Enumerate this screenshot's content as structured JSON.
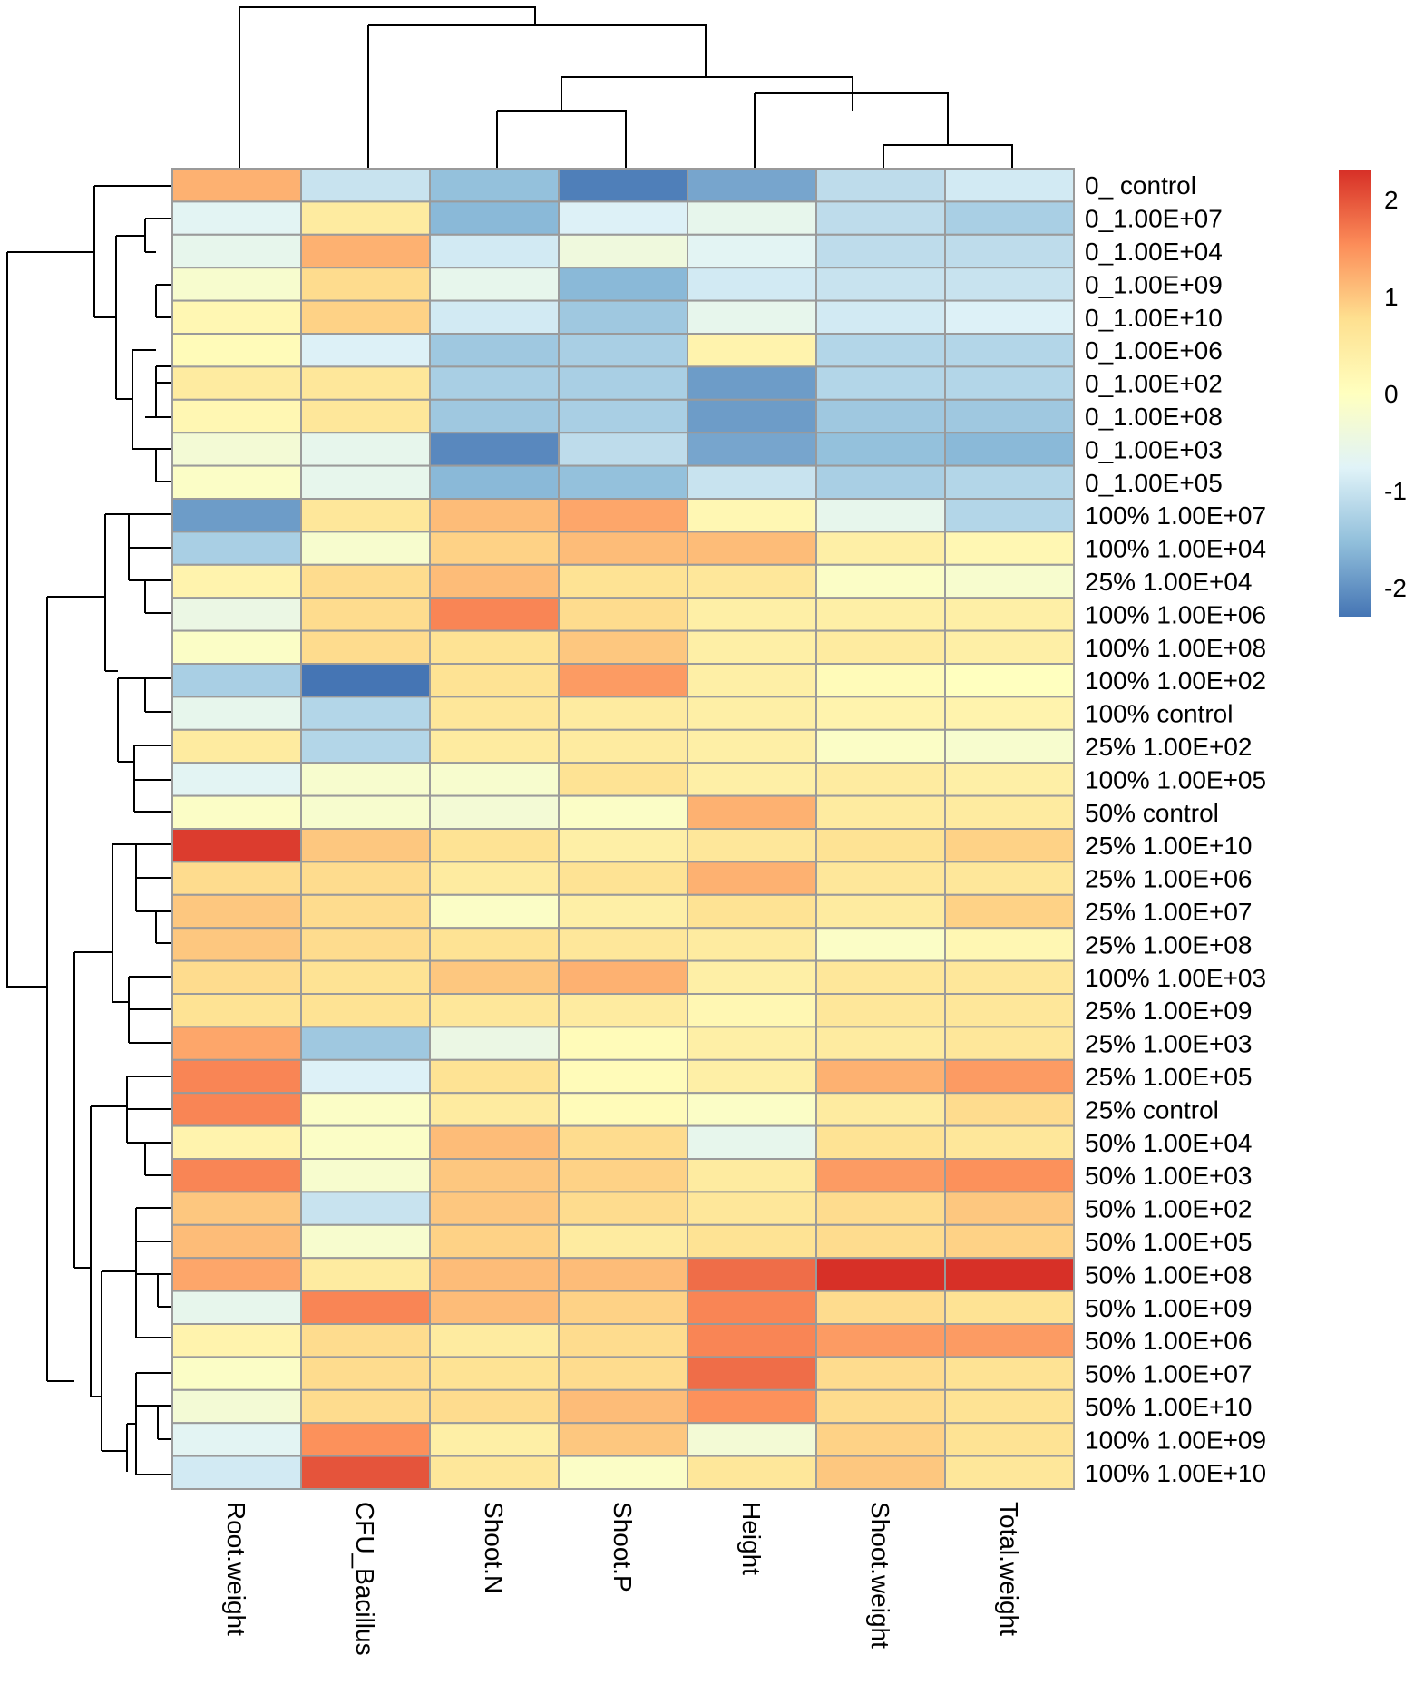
{
  "chart_data": {
    "type": "heatmap",
    "columns": [
      "Root.weight",
      "CFU_Bacillus",
      "Shoot.N",
      "Shoot.P",
      "Height",
      "Shoot.weight",
      "Total.weight"
    ],
    "rows": [
      "0_ control",
      "0_1.00E+07",
      "0_1.00E+04",
      "0_1.00E+09",
      "0_1.00E+10",
      "0_1.00E+06",
      "0_1.00E+02",
      "0_1.00E+08",
      "0_1.00E+03",
      "0_1.00E+05",
      "100% 1.00E+07",
      "100% 1.00E+04",
      "25% 1.00E+04",
      "100% 1.00E+06",
      "100% 1.00E+08",
      "100% 1.00E+02",
      "100% control",
      "25% 1.00E+02",
      "100% 1.00E+05",
      "50% control",
      "25% 1.00E+10",
      "25% 1.00E+06",
      "25% 1.00E+07",
      "25% 1.00E+08",
      "100% 1.00E+03",
      "25% 1.00E+09",
      "25% 1.00E+03",
      "25% 1.00E+05",
      "25% control",
      "50% 1.00E+04",
      "50% 1.00E+03",
      "50% 1.00E+02",
      "50% 1.00E+05",
      "50% 1.00E+08",
      "50% 1.00E+09",
      "50% 1.00E+06",
      "50% 1.00E+07",
      "50% 1.00E+10",
      "100% 1.00E+09",
      "100% 1.00E+10"
    ],
    "values": [
      [
        1.2,
        -1.0,
        -1.5,
        -2.2,
        -1.8,
        -1.1,
        -0.9
      ],
      [
        -0.7,
        0.5,
        -1.6,
        -0.8,
        -0.6,
        -1.1,
        -1.3
      ],
      [
        -0.6,
        1.2,
        -0.9,
        -0.4,
        -0.7,
        -1.1,
        -1.1
      ],
      [
        -0.2,
        0.8,
        -0.6,
        -1.6,
        -0.9,
        -1.0,
        -1.0
      ],
      [
        0.2,
        0.9,
        -0.9,
        -1.4,
        -0.6,
        -0.9,
        -0.8
      ],
      [
        0.1,
        -0.8,
        -1.4,
        -1.3,
        0.3,
        -1.2,
        -1.2
      ],
      [
        0.5,
        0.6,
        -1.3,
        -1.3,
        -1.9,
        -1.2,
        -1.2
      ],
      [
        0.2,
        0.6,
        -1.4,
        -1.3,
        -1.9,
        -1.4,
        -1.4
      ],
      [
        -0.3,
        -0.6,
        -2.1,
        -1.1,
        -1.8,
        -1.5,
        -1.6
      ],
      [
        -0.1,
        -0.6,
        -1.6,
        -1.5,
        -1.0,
        -1.3,
        -1.2
      ],
      [
        -1.9,
        0.6,
        1.1,
        1.3,
        0.2,
        -0.6,
        -1.2
      ],
      [
        -1.3,
        -0.2,
        0.9,
        1.1,
        1.1,
        0.4,
        0.2
      ],
      [
        0.3,
        0.8,
        1.1,
        0.7,
        0.6,
        -0.1,
        -0.2
      ],
      [
        -0.5,
        0.8,
        1.6,
        0.8,
        0.4,
        0.4,
        0.4
      ],
      [
        -0.1,
        0.8,
        0.7,
        1.0,
        0.4,
        0.5,
        0.4
      ],
      [
        -1.3,
        -2.3,
        0.7,
        1.4,
        0.4,
        0.1,
        0.0
      ],
      [
        -0.6,
        -1.2,
        0.6,
        0.5,
        0.4,
        0.3,
        0.3
      ],
      [
        0.5,
        -1.2,
        0.5,
        0.5,
        0.4,
        -0.1,
        -0.2
      ],
      [
        -0.7,
        -0.2,
        -0.2,
        0.7,
        0.4,
        0.5,
        0.4
      ],
      [
        -0.1,
        -0.2,
        -0.3,
        -0.1,
        1.2,
        0.5,
        0.5
      ],
      [
        2.2,
        1.0,
        0.7,
        0.4,
        0.6,
        0.7,
        0.9
      ],
      [
        0.8,
        0.8,
        0.5,
        0.7,
        1.2,
        0.6,
        0.6
      ],
      [
        1.0,
        0.8,
        -0.1,
        0.4,
        0.7,
        0.5,
        0.9
      ],
      [
        1.0,
        0.8,
        0.7,
        0.6,
        0.5,
        -0.1,
        0.2
      ],
      [
        0.8,
        0.7,
        1.0,
        1.2,
        0.4,
        0.6,
        0.6
      ],
      [
        0.7,
        0.7,
        0.6,
        0.5,
        0.2,
        0.6,
        0.6
      ],
      [
        1.3,
        -1.4,
        -0.5,
        0.1,
        0.4,
        0.5,
        0.6
      ],
      [
        1.6,
        -0.8,
        0.7,
        0.1,
        0.4,
        1.2,
        1.4
      ],
      [
        1.6,
        -0.1,
        0.5,
        0.1,
        -0.1,
        0.5,
        0.8
      ],
      [
        0.3,
        -0.1,
        1.1,
        0.8,
        -0.6,
        0.7,
        0.6
      ],
      [
        1.6,
        -0.2,
        1.0,
        0.9,
        0.5,
        1.4,
        1.5
      ],
      [
        1.0,
        -1.0,
        1.0,
        0.8,
        0.6,
        0.8,
        1.0
      ],
      [
        1.1,
        -0.2,
        0.9,
        0.5,
        0.7,
        0.8,
        0.9
      ],
      [
        1.3,
        0.5,
        1.1,
        1.1,
        1.8,
        2.3,
        2.3
      ],
      [
        -0.6,
        1.6,
        1.1,
        0.9,
        1.6,
        0.8,
        0.7
      ],
      [
        0.3,
        0.8,
        0.5,
        0.8,
        1.6,
        1.4,
        1.4
      ],
      [
        -0.1,
        0.8,
        0.7,
        0.8,
        1.8,
        0.8,
        0.7
      ],
      [
        -0.3,
        0.8,
        0.8,
        1.1,
        1.5,
        0.8,
        0.7
      ],
      [
        -0.7,
        1.5,
        0.4,
        1.0,
        -0.3,
        0.9,
        0.7
      ],
      [
        -0.9,
        2.0,
        0.6,
        -0.1,
        0.6,
        1.0,
        0.6
      ]
    ],
    "color_scale": {
      "min": -2.3,
      "max": 2.3,
      "ticks": [
        2,
        1,
        0,
        -1,
        -2
      ],
      "tick_labels": [
        "2",
        "1",
        "0",
        "-1",
        "-2"
      ],
      "stops": [
        "#4575b4",
        "#91bfdb",
        "#e0f3f8",
        "#ffffbf",
        "#fee090",
        "#fc8d59",
        "#d73027"
      ]
    },
    "legend_position": "top-right",
    "title": "",
    "xlabel": "",
    "ylabel": ""
  }
}
